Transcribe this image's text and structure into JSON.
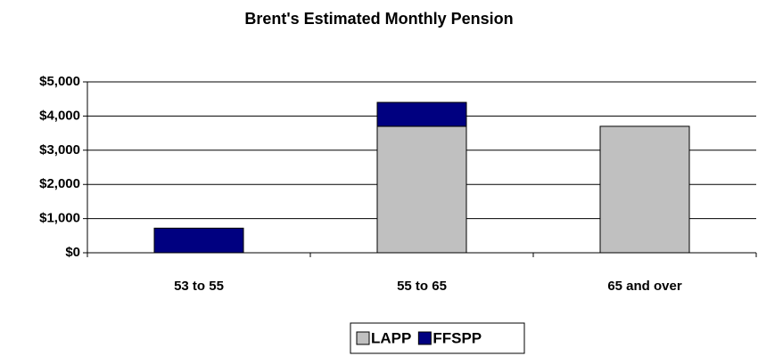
{
  "chart_data": {
    "type": "stacked_bar",
    "title": "Brent's Estimated Monthly Pension",
    "categories": [
      "53 to 55",
      "55 to 65",
      "65 and over"
    ],
    "series": [
      {
        "name": "LAPP",
        "color": "#c0c0c0",
        "values": [
          0,
          3700,
          3700
        ]
      },
      {
        "name": "FFSPP",
        "color": "#000080",
        "values": [
          720,
          700,
          0
        ]
      }
    ],
    "ylim": [
      0,
      5000
    ],
    "yticks": [
      {
        "value": 0,
        "label": "$0"
      },
      {
        "value": 1000,
        "label": "$1,000"
      },
      {
        "value": 2000,
        "label": "$2,000"
      },
      {
        "value": 3000,
        "label": "$3,000"
      },
      {
        "value": 4000,
        "label": "$4,000"
      },
      {
        "value": 5000,
        "label": "$5,000"
      }
    ],
    "grid": true,
    "legend": "bottom"
  }
}
